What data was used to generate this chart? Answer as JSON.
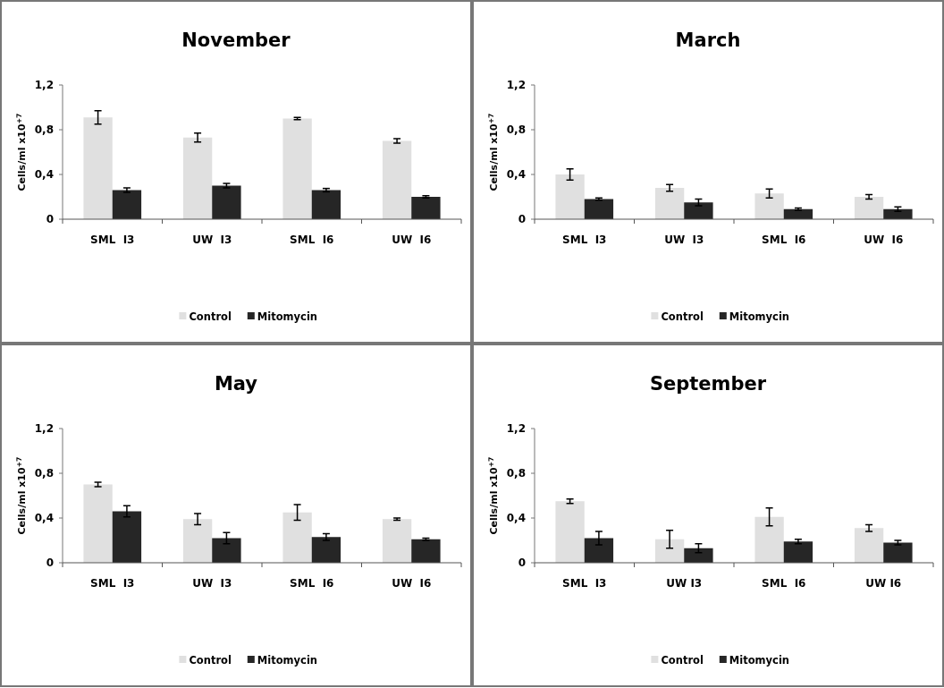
{
  "chart_data": [
    {
      "type": "bar",
      "title": "November",
      "ylabel": "Cells/ml x10$^{+7}$",
      "categories": [
        "SML  I3",
        "UW  I3",
        "SML  I6",
        "UW  I6"
      ],
      "series": [
        {
          "name": "Control",
          "color": "#e0e0e0",
          "values": [
            0.91,
            0.73,
            0.9,
            0.7
          ],
          "errors": [
            0.06,
            0.04,
            0.01,
            0.02
          ]
        },
        {
          "name": "Mitomycin",
          "color": "#262626",
          "values": [
            0.26,
            0.3,
            0.26,
            0.2
          ],
          "errors": [
            0.02,
            0.02,
            0.015,
            0.01
          ]
        }
      ],
      "ylim": [
        0,
        1.2
      ],
      "yticks": [
        {
          "value": 0,
          "label": "0"
        },
        {
          "value": 0.4,
          "label": "0,4"
        },
        {
          "value": 0.8,
          "label": "0,8"
        },
        {
          "value": 1.2,
          "label": "1,2"
        }
      ],
      "grid": false,
      "legend": "bottom"
    },
    {
      "type": "bar",
      "title": "March",
      "ylabel": "Cells/ml x10$^{+7}$",
      "categories": [
        "SML  I3",
        "UW  I3",
        "SML  I6",
        "UW  I6"
      ],
      "series": [
        {
          "name": "Control",
          "color": "#e0e0e0",
          "values": [
            0.4,
            0.28,
            0.23,
            0.2
          ],
          "errors": [
            0.05,
            0.03,
            0.04,
            0.02
          ]
        },
        {
          "name": "Mitomycin",
          "color": "#262626",
          "values": [
            0.18,
            0.15,
            0.09,
            0.09
          ],
          "errors": [
            0.01,
            0.03,
            0.01,
            0.02
          ]
        }
      ],
      "ylim": [
        0,
        1.2
      ],
      "yticks": [
        {
          "value": 0,
          "label": "0"
        },
        {
          "value": 0.4,
          "label": "0,4"
        },
        {
          "value": 0.8,
          "label": "0,8"
        },
        {
          "value": 1.2,
          "label": "1,2"
        }
      ],
      "grid": false,
      "legend": "bottom"
    },
    {
      "type": "bar",
      "title": "May",
      "ylabel": "Cells/ml x10$^{+7}$",
      "categories": [
        "SML  I3",
        "UW  I3",
        "SML  I6",
        "UW  I6"
      ],
      "series": [
        {
          "name": "Control",
          "color": "#e0e0e0",
          "values": [
            0.7,
            0.39,
            0.45,
            0.39
          ],
          "errors": [
            0.02,
            0.05,
            0.07,
            0.01
          ]
        },
        {
          "name": "Mitomycin",
          "color": "#262626",
          "values": [
            0.46,
            0.22,
            0.23,
            0.21
          ],
          "errors": [
            0.05,
            0.05,
            0.03,
            0.01
          ]
        }
      ],
      "ylim": [
        0,
        1.2
      ],
      "yticks": [
        {
          "value": 0,
          "label": "0"
        },
        {
          "value": 0.4,
          "label": "0,4"
        },
        {
          "value": 0.8,
          "label": "0,8"
        },
        {
          "value": 1.2,
          "label": "1,2"
        }
      ],
      "grid": false,
      "legend": "bottom"
    },
    {
      "type": "bar",
      "title": "September",
      "ylabel": "Cells/ml x10$^{+7}$",
      "categories": [
        "SML  I3",
        "UW I3",
        "SML  I6",
        "UW I6"
      ],
      "series": [
        {
          "name": "Control",
          "color": "#e0e0e0",
          "values": [
            0.55,
            0.21,
            0.41,
            0.31
          ],
          "errors": [
            0.02,
            0.08,
            0.08,
            0.03
          ]
        },
        {
          "name": "Mitomycin",
          "color": "#262626",
          "values": [
            0.22,
            0.13,
            0.19,
            0.18
          ],
          "errors": [
            0.06,
            0.04,
            0.02,
            0.02
          ]
        }
      ],
      "ylim": [
        0,
        1.2
      ],
      "yticks": [
        {
          "value": 0,
          "label": "0"
        },
        {
          "value": 0.4,
          "label": "0,4"
        },
        {
          "value": 0.8,
          "label": "0,8"
        },
        {
          "value": 1.2,
          "label": "1,2"
        }
      ],
      "grid": false,
      "legend": "bottom"
    }
  ]
}
